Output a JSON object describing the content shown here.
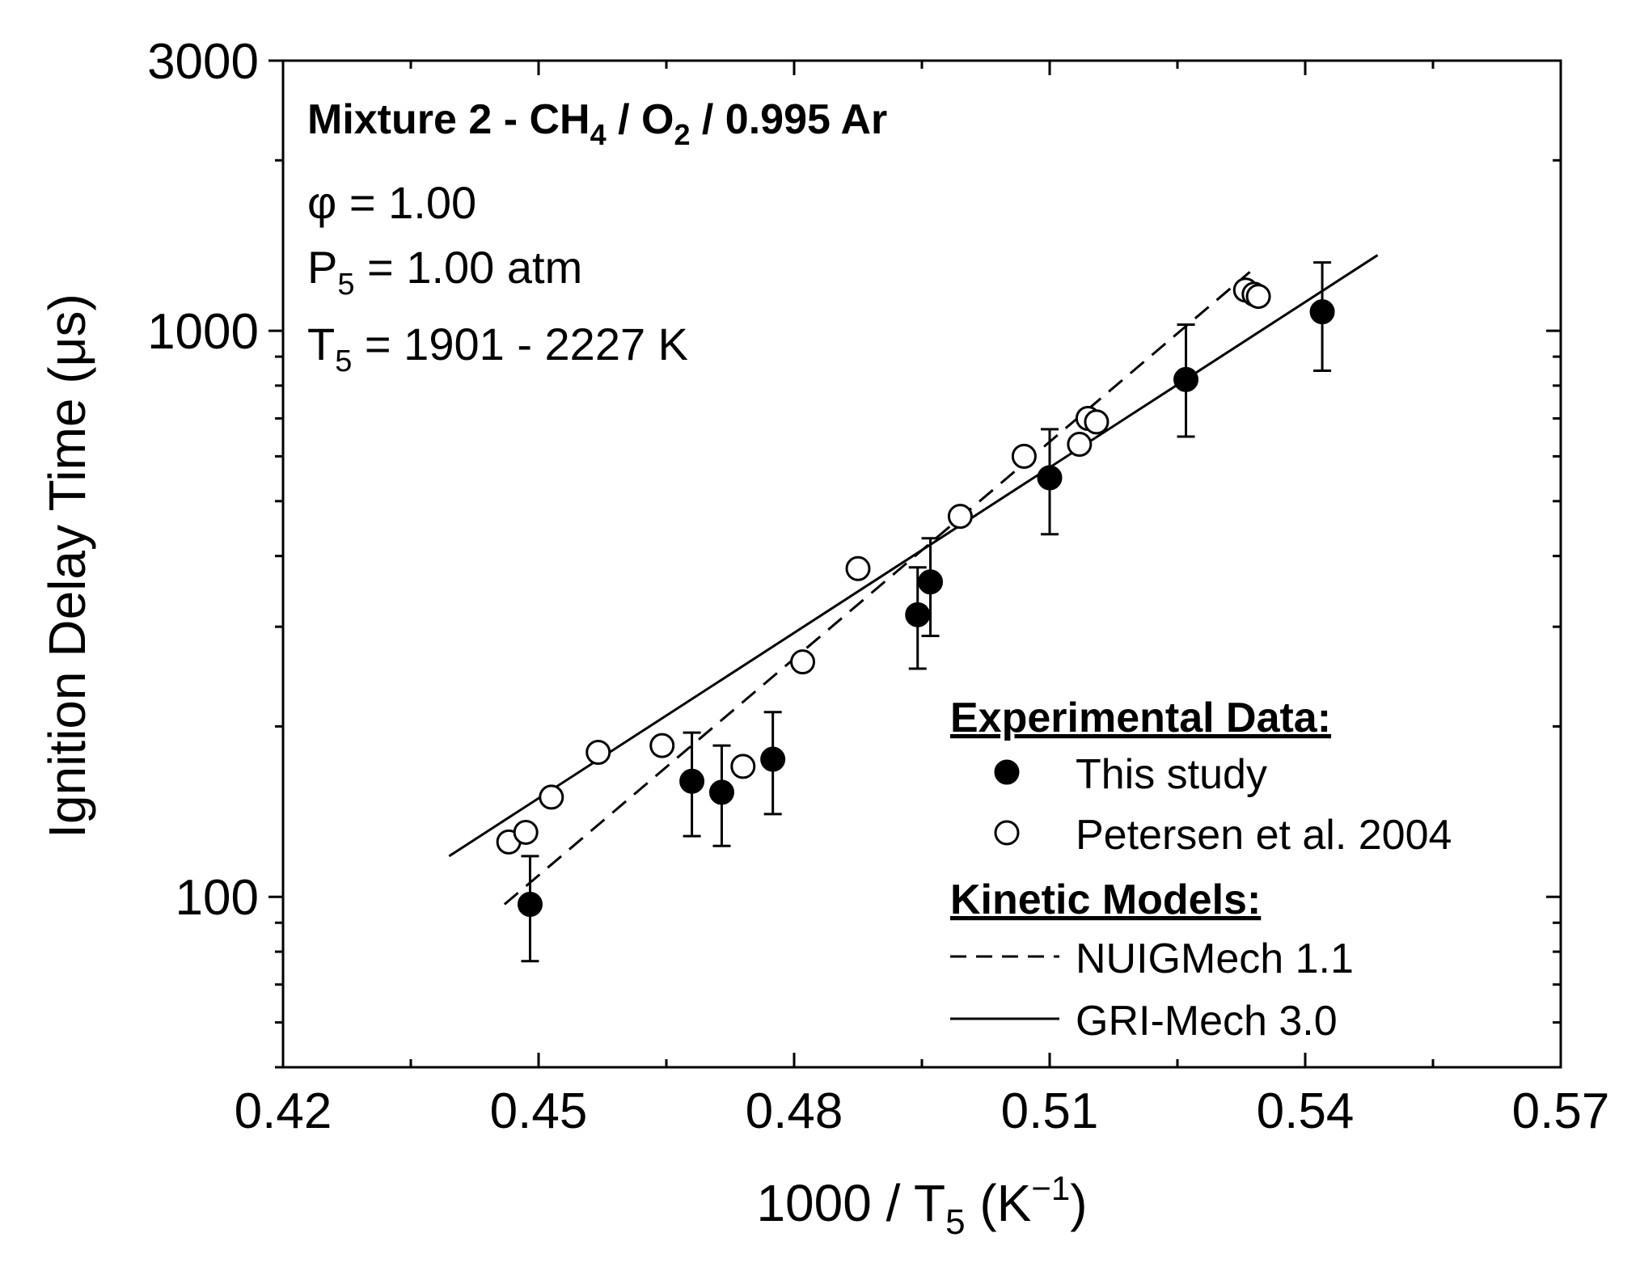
{
  "chart_data": {
    "type": "scatter",
    "title": "",
    "xlabel": {
      "main": "1000 / T",
      "sub": "5",
      "unit_open": " (K",
      "sup": "−1",
      "unit_close": ")"
    },
    "ylabel": "Ignition Delay Time (μs)",
    "xlim": [
      0.42,
      0.57
    ],
    "ylim": [
      50,
      3000
    ],
    "yscale": "log",
    "x_ticks": [
      "0.42",
      "0.45",
      "0.48",
      "0.51",
      "0.54",
      "0.57"
    ],
    "x_tick_values": [
      0.42,
      0.45,
      0.48,
      0.51,
      0.54,
      0.57
    ],
    "x_minor_ticks": [
      0.435,
      0.465,
      0.495,
      0.525,
      0.555
    ],
    "y_ticks": [
      "100",
      "1000",
      "3000"
    ],
    "y_tick_values": [
      100,
      1000,
      3000
    ],
    "y_minor_ticks": [
      50,
      60,
      70,
      80,
      90,
      200,
      300,
      400,
      500,
      600,
      700,
      800,
      900,
      2000
    ],
    "annotations": {
      "mixture": {
        "pre": "Mixture 2 - CH",
        "sub1": "4",
        "mid": " / O",
        "sub2": "2",
        "post": " / 0.995 Ar"
      },
      "phi": "φ = 1.00",
      "pressure": {
        "pre": "P",
        "sub": "5",
        "post": " = 1.00 atm"
      },
      "temperature": {
        "pre": "T",
        "sub": "5",
        "post": " = 1901 - 2227 K"
      }
    },
    "legend": {
      "placement": "bottom-right",
      "experimental_header": "Experimental Data:",
      "models_header": "Kinetic Models:"
    },
    "series": [
      {
        "name": "This study",
        "kind": "markers",
        "marker": "filled-circle",
        "x": [
          0.449,
          0.468,
          0.4715,
          0.4775,
          0.4945,
          0.496,
          0.51,
          0.526,
          0.542
        ],
        "y": [
          97,
          160,
          153,
          175,
          315,
          360,
          550,
          820,
          1080
        ],
        "err_low": [
          77,
          128,
          123,
          140,
          253,
          289,
          437,
          650,
          850
        ],
        "err_high": [
          118,
          195,
          185,
          212,
          382,
          430,
          670,
          1025,
          1320
        ]
      },
      {
        "name": "Petersen et al. 2004",
        "kind": "markers",
        "marker": "open-circle",
        "x": [
          0.4465,
          0.4485,
          0.4515,
          0.457,
          0.4645,
          0.474,
          0.481,
          0.4875,
          0.4995,
          0.507,
          0.5135,
          0.5145,
          0.5155,
          0.533,
          0.534,
          0.5345
        ],
        "y": [
          125,
          130,
          150,
          180,
          185,
          170,
          260,
          380,
          470,
          600,
          630,
          700,
          690,
          1180,
          1160,
          1150
        ]
      },
      {
        "name": "NUIGMech 1.1",
        "kind": "line",
        "style": "dashed",
        "x": [
          0.446,
          0.5335
        ],
        "y": [
          97,
          1270
        ]
      },
      {
        "name": "GRI-Mech 3.0",
        "kind": "line",
        "style": "solid",
        "x": [
          0.4395,
          0.5485
        ],
        "y": [
          118,
          1360
        ]
      }
    ]
  }
}
